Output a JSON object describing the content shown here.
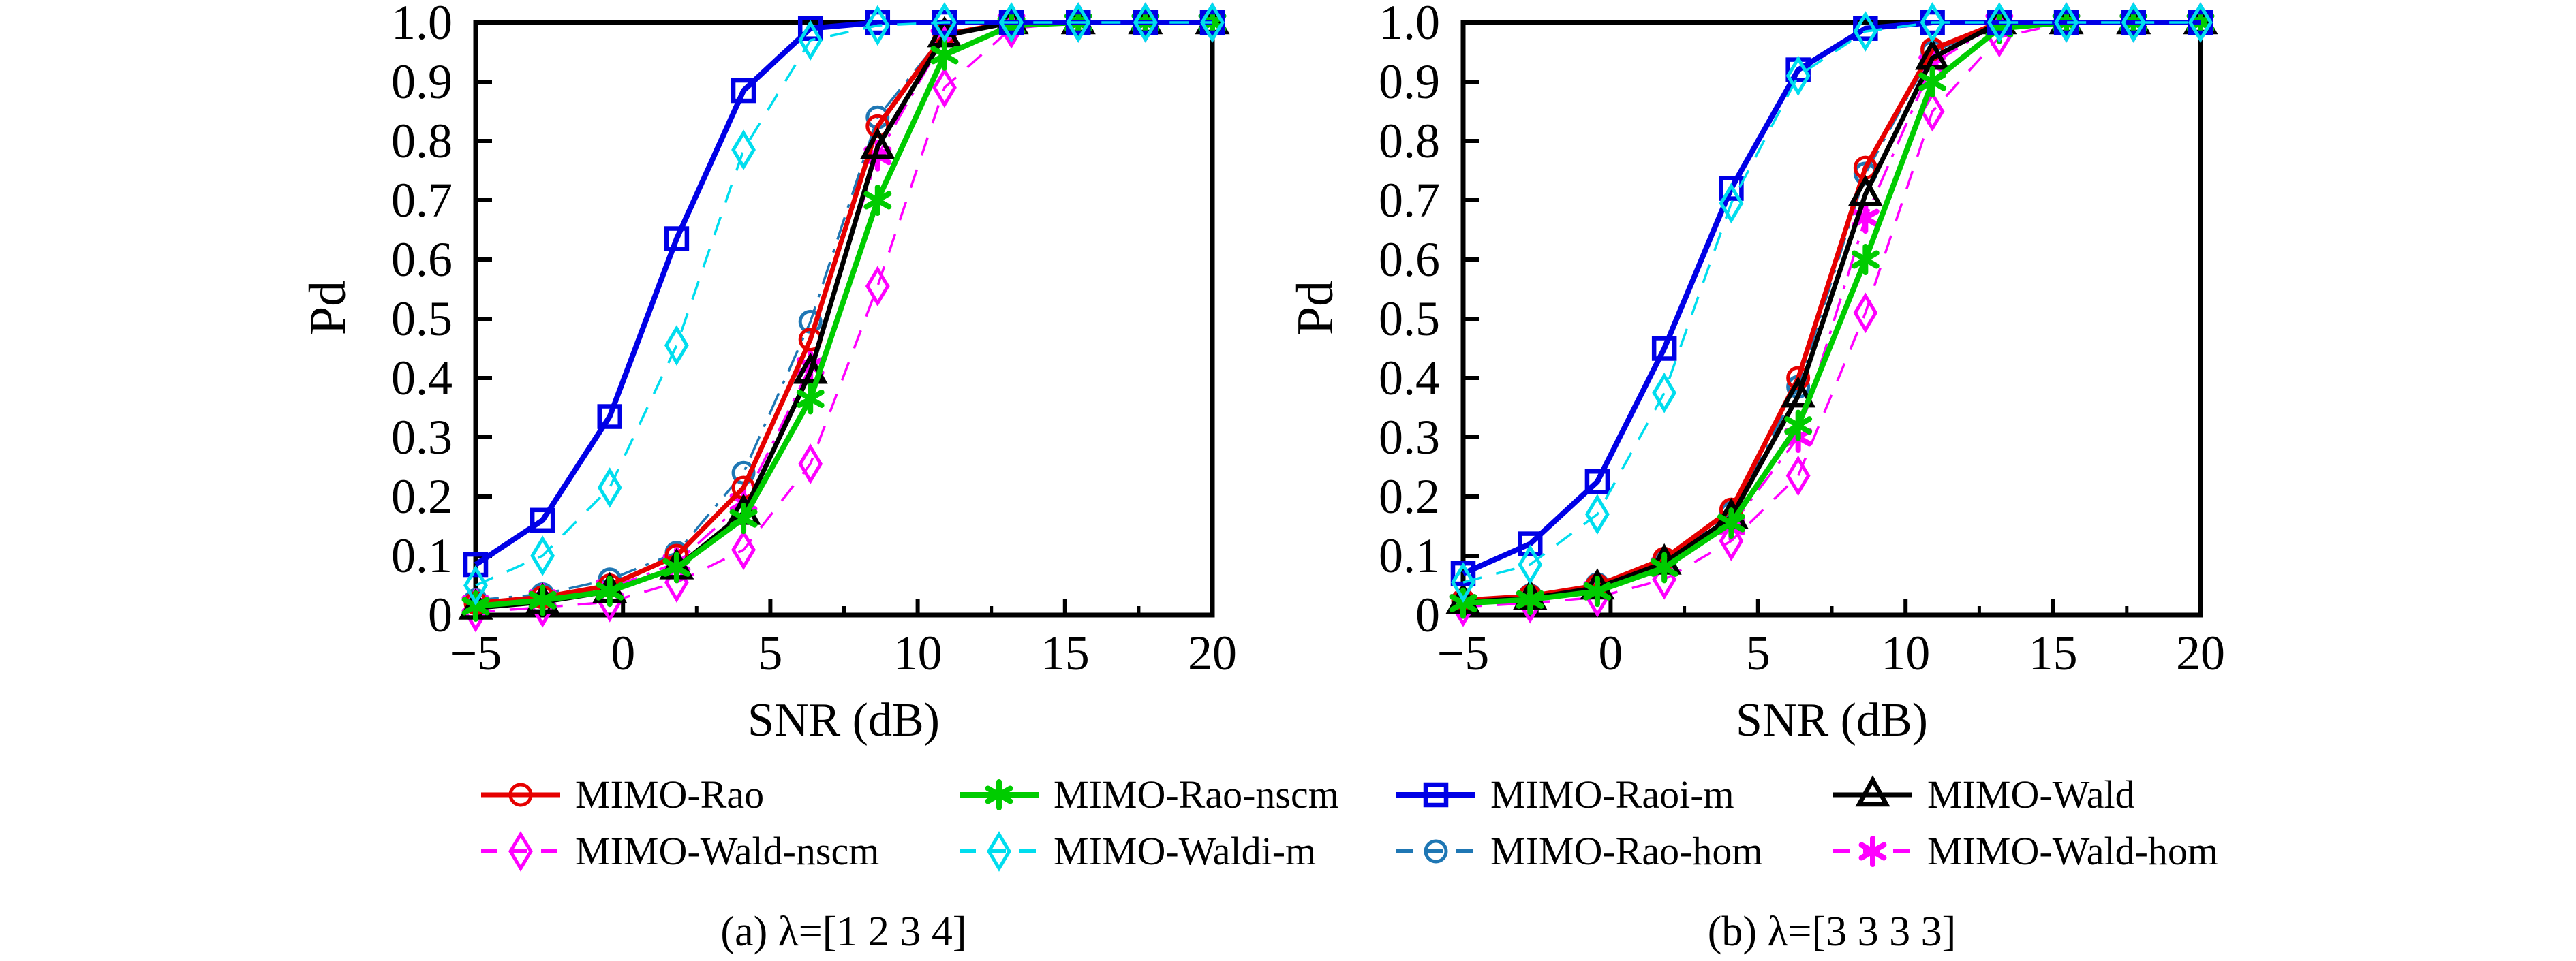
{
  "figure": {
    "y_axis_label": "Pd",
    "x_axis_label": "SNR (dB)",
    "caption_a": "(a) λ=[1 2 3 4]",
    "caption_b": "(b) λ=[3 3 3 3]"
  },
  "legend": {
    "rows": [
      [
        "MIMO-Rao",
        "MIMO-Rao-nscm",
        "MIMO-Raoi-m",
        "MIMO-Wald"
      ],
      [
        "MIMO-Wald-nscm",
        "MIMO-Waldi-m",
        "MIMO-Rao-hom",
        "MIMO-Wald-hom"
      ]
    ]
  },
  "chart_data": [
    {
      "type": "line",
      "title": "(a) λ=[1 2 3 4]",
      "xlabel": "SNR (dB)",
      "ylabel": "Pd",
      "xlim": [
        -5,
        20
      ],
      "ylim": [
        0,
        1
      ],
      "grid": false,
      "legend_position": "below-figure",
      "xticks": [
        {
          "v": -5,
          "label": "−5"
        },
        {
          "v": 0,
          "label": "0"
        },
        {
          "v": 5,
          "label": "5"
        },
        {
          "v": 10,
          "label": "10"
        },
        {
          "v": 15,
          "label": "15"
        },
        {
          "v": 20,
          "label": "20"
        }
      ],
      "xminor": [
        -2.5,
        2.5,
        7.5,
        12.5,
        17.5
      ],
      "yticks": [
        {
          "v": 0,
          "label": "0"
        },
        {
          "v": 0.1,
          "label": "0.1"
        },
        {
          "v": 0.2,
          "label": "0.2"
        },
        {
          "v": 0.3,
          "label": "0.3"
        },
        {
          "v": 0.4,
          "label": "0.4"
        },
        {
          "v": 0.5,
          "label": "0.5"
        },
        {
          "v": 0.6,
          "label": "0.6"
        },
        {
          "v": 0.7,
          "label": "0.7"
        },
        {
          "v": 0.8,
          "label": "0.8"
        },
        {
          "v": 0.9,
          "label": "0.9"
        },
        {
          "v": 1.0,
          "label": "1.0"
        }
      ],
      "x": [
        -5,
        -2.73,
        -0.45,
        1.82,
        4.09,
        6.36,
        8.64,
        10.91,
        13.18,
        15.45,
        17.73,
        20
      ],
      "series": [
        {
          "name": "MIMO-Wald-nscm",
          "color": "#ff00ff",
          "dash": "dashed",
          "marker": "diamond",
          "width": 3.5,
          "values": [
            0.005,
            0.013,
            0.022,
            0.055,
            0.11,
            0.255,
            0.555,
            0.89,
            0.99,
            1.0,
            1.0,
            1.0
          ]
        },
        {
          "name": "MIMO-Rao-hom",
          "color": "#1f77b4",
          "dash": "dashdot",
          "marker": "circle",
          "width": 3.5,
          "values": [
            0.025,
            0.035,
            0.06,
            0.105,
            0.24,
            0.495,
            0.84,
            0.98,
            1.0,
            1.0,
            1.0,
            1.0
          ]
        },
        {
          "name": "MIMO-Wald-hom",
          "color": "#ff00ff",
          "dash": "dashdot",
          "marker": "asterisk",
          "width": 3.5,
          "values": [
            0.018,
            0.028,
            0.045,
            0.088,
            0.19,
            0.42,
            0.775,
            0.975,
            1.0,
            1.0,
            1.0,
            1.0
          ]
        },
        {
          "name": "MIMO-Rao",
          "color": "#e60000",
          "dash": "solid",
          "marker": "circle",
          "width": 7,
          "values": [
            0.02,
            0.03,
            0.05,
            0.1,
            0.215,
            0.465,
            0.825,
            0.98,
            1.0,
            1.0,
            1.0,
            1.0
          ]
        },
        {
          "name": "MIMO-Wald",
          "color": "#000000",
          "dash": "solid",
          "marker": "triangle",
          "width": 7,
          "values": [
            0.012,
            0.022,
            0.04,
            0.08,
            0.172,
            0.41,
            0.79,
            0.978,
            1.0,
            1.0,
            1.0,
            1.0
          ]
        },
        {
          "name": "MIMO-Rao-nscm",
          "color": "#00cc00",
          "dash": "solid",
          "marker": "asterisk",
          "width": 8,
          "values": [
            0.015,
            0.025,
            0.04,
            0.08,
            0.163,
            0.365,
            0.7,
            0.945,
            0.995,
            1.0,
            1.0,
            1.0
          ]
        },
        {
          "name": "MIMO-Raoi-m",
          "color": "#0000e6",
          "dash": "solid",
          "marker": "square",
          "width": 8,
          "values": [
            0.085,
            0.16,
            0.335,
            0.635,
            0.885,
            0.99,
            1.0,
            1.0,
            1.0,
            1.0,
            1.0,
            1.0
          ]
        },
        {
          "name": "MIMO-Waldi-m",
          "color": "#00ddee",
          "dash": "dashed",
          "marker": "diamond",
          "width": 3.5,
          "values": [
            0.05,
            0.1,
            0.215,
            0.455,
            0.785,
            0.97,
            0.995,
            1.0,
            1.0,
            1.0,
            1.0,
            1.0
          ]
        }
      ]
    },
    {
      "type": "line",
      "title": "(b) λ=[3 3 3 3]",
      "xlabel": "SNR (dB)",
      "ylabel": "Pd",
      "xlim": [
        -5,
        20
      ],
      "ylim": [
        0,
        1
      ],
      "grid": false,
      "legend_position": "below-figure",
      "xticks": [
        {
          "v": -5,
          "label": "−5"
        },
        {
          "v": 0,
          "label": "0"
        },
        {
          "v": 5,
          "label": "5"
        },
        {
          "v": 10,
          "label": "10"
        },
        {
          "v": 15,
          "label": "15"
        },
        {
          "v": 20,
          "label": "20"
        }
      ],
      "xminor": [
        -2.5,
        2.5,
        7.5,
        12.5,
        17.5
      ],
      "yticks": [
        {
          "v": 0,
          "label": "0"
        },
        {
          "v": 0.1,
          "label": "0.1"
        },
        {
          "v": 0.2,
          "label": "0.2"
        },
        {
          "v": 0.3,
          "label": "0.3"
        },
        {
          "v": 0.4,
          "label": "0.4"
        },
        {
          "v": 0.5,
          "label": "0.5"
        },
        {
          "v": 0.6,
          "label": "0.6"
        },
        {
          "v": 0.7,
          "label": "0.7"
        },
        {
          "v": 0.8,
          "label": "0.8"
        },
        {
          "v": 0.9,
          "label": "0.9"
        },
        {
          "v": 1.0,
          "label": "1.0"
        }
      ],
      "x": [
        -5,
        -2.73,
        -0.45,
        1.82,
        4.09,
        6.36,
        8.64,
        10.91,
        13.18,
        15.45,
        17.73,
        20
      ],
      "series": [
        {
          "name": "MIMO-Wald-nscm",
          "color": "#ff00ff",
          "dash": "dashed",
          "marker": "diamond",
          "width": 3.5,
          "values": [
            0.014,
            0.02,
            0.03,
            0.06,
            0.125,
            0.235,
            0.51,
            0.85,
            0.975,
            1.0,
            1.0,
            1.0
          ]
        },
        {
          "name": "MIMO-Rao-hom",
          "color": "#1f77b4",
          "dash": "dashdot",
          "marker": "circle",
          "width": 3.5,
          "values": [
            0.025,
            0.033,
            0.052,
            0.092,
            0.172,
            0.385,
            0.745,
            0.95,
            1.0,
            1.0,
            1.0,
            1.0
          ]
        },
        {
          "name": "MIMO-Wald-hom",
          "color": "#ff00ff",
          "dash": "dashdot",
          "marker": "asterisk",
          "width": 3.5,
          "values": [
            0.02,
            0.026,
            0.042,
            0.082,
            0.15,
            0.3,
            0.67,
            0.93,
            1.0,
            1.0,
            1.0,
            1.0
          ]
        },
        {
          "name": "MIMO-Rao",
          "color": "#e60000",
          "dash": "solid",
          "marker": "circle",
          "width": 7,
          "values": [
            0.025,
            0.032,
            0.05,
            0.095,
            0.178,
            0.4,
            0.755,
            0.955,
            1.0,
            1.0,
            1.0,
            1.0
          ]
        },
        {
          "name": "MIMO-Wald",
          "color": "#000000",
          "dash": "solid",
          "marker": "triangle",
          "width": 7,
          "values": [
            0.022,
            0.028,
            0.046,
            0.088,
            0.165,
            0.37,
            0.71,
            0.94,
            1.0,
            1.0,
            1.0,
            1.0
          ]
        },
        {
          "name": "MIMO-Rao-nscm",
          "color": "#00cc00",
          "dash": "solid",
          "marker": "asterisk",
          "width": 8,
          "values": [
            0.02,
            0.026,
            0.04,
            0.08,
            0.155,
            0.32,
            0.6,
            0.9,
            0.99,
            1.0,
            1.0,
            1.0
          ]
        },
        {
          "name": "MIMO-Raoi-m",
          "color": "#0000e6",
          "dash": "solid",
          "marker": "square",
          "width": 8,
          "values": [
            0.07,
            0.12,
            0.225,
            0.45,
            0.72,
            0.92,
            0.99,
            1.0,
            1.0,
            1.0,
            1.0,
            1.0
          ]
        },
        {
          "name": "MIMO-Waldi-m",
          "color": "#00ddee",
          "dash": "dashed",
          "marker": "diamond",
          "width": 3.5,
          "values": [
            0.055,
            0.085,
            0.17,
            0.375,
            0.695,
            0.91,
            0.985,
            1.0,
            1.0,
            1.0,
            1.0,
            1.0
          ]
        }
      ]
    }
  ]
}
